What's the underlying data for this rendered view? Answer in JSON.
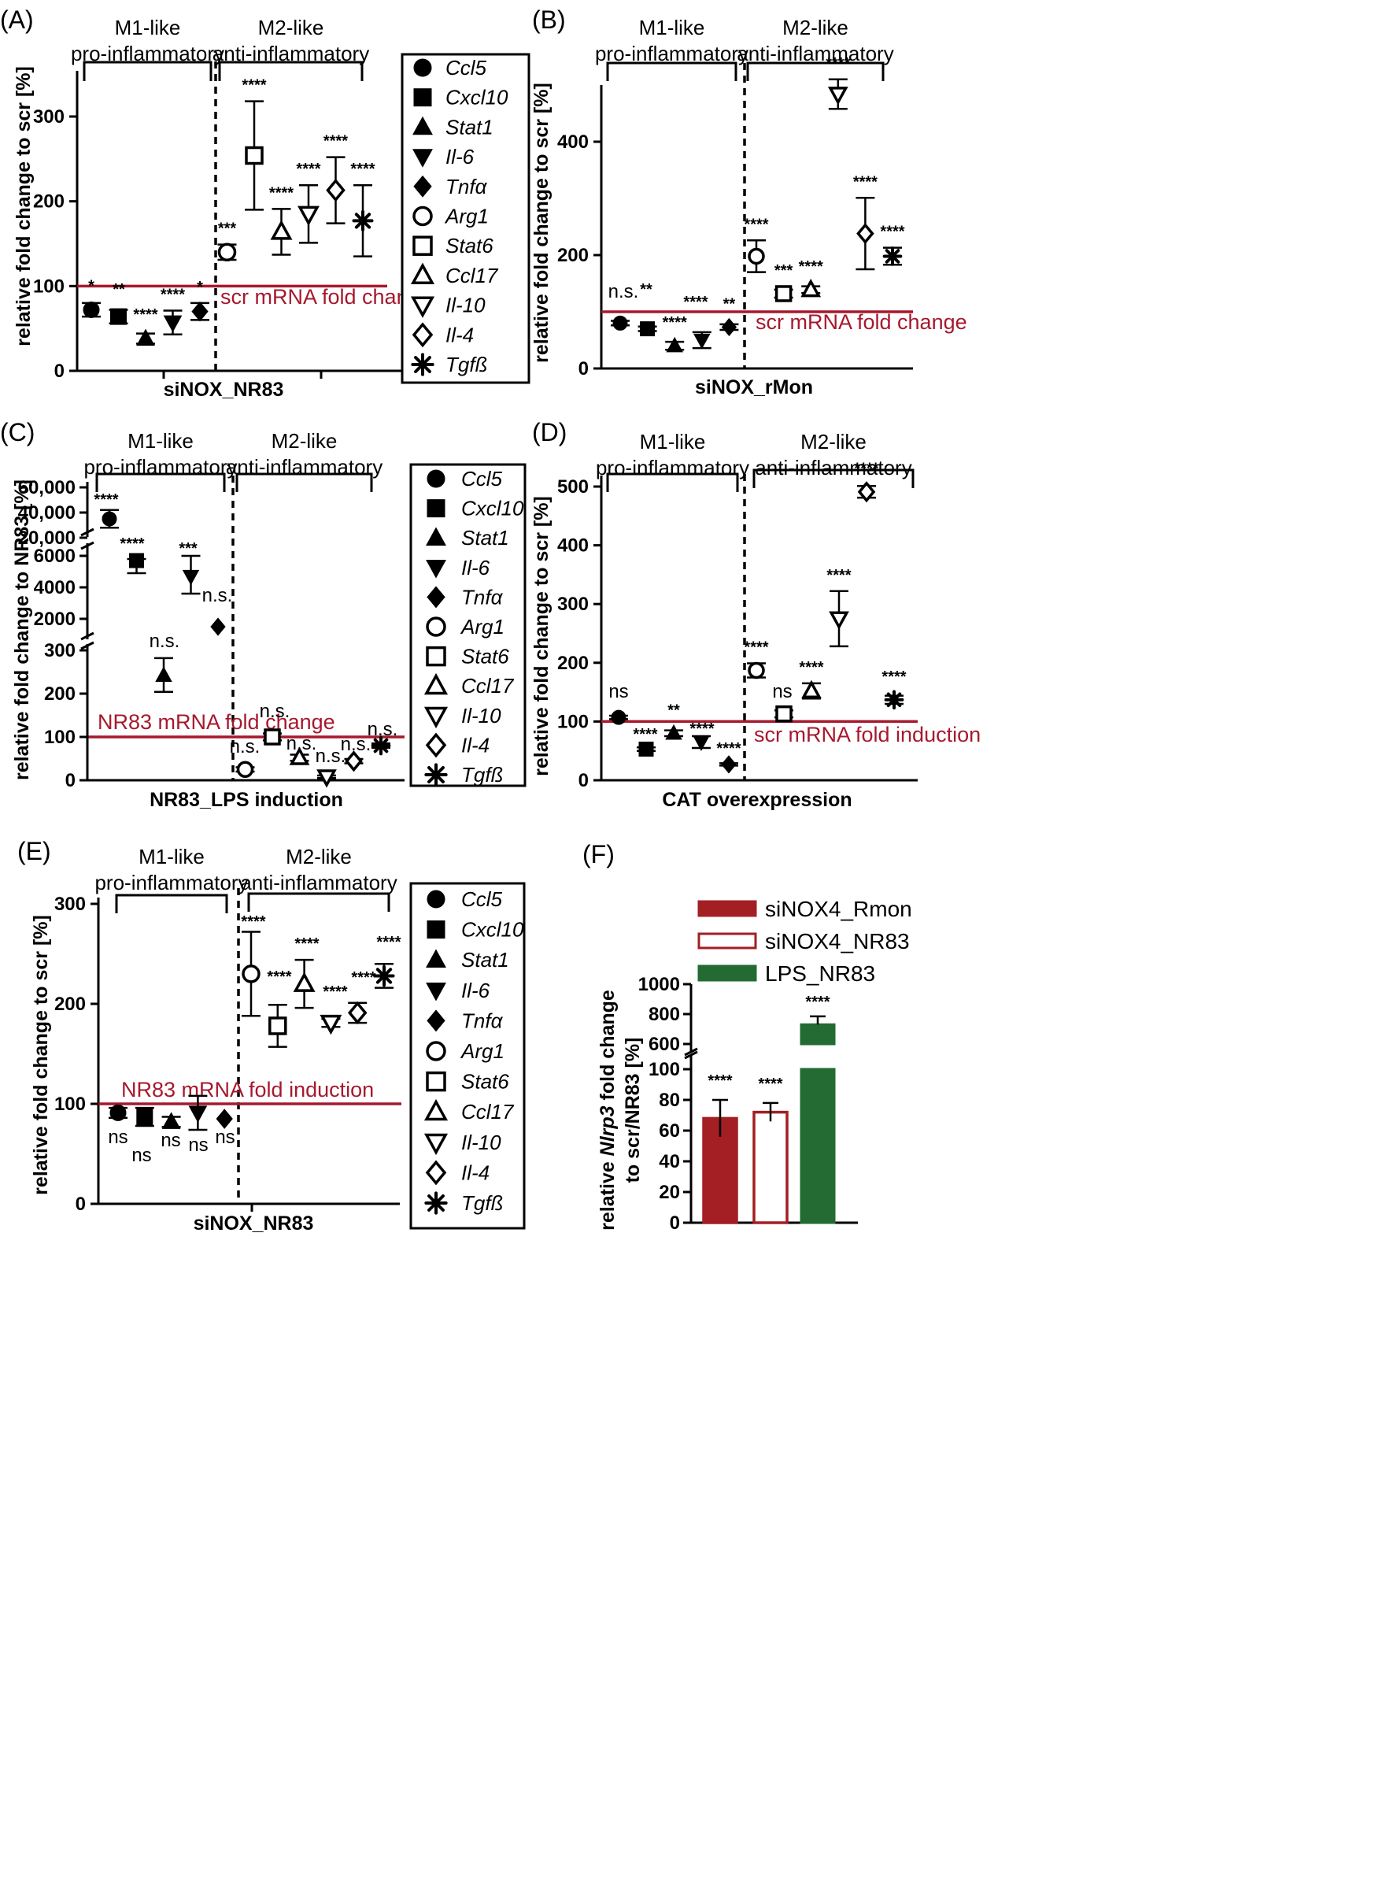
{
  "gene_order": [
    "Ccl5",
    "Cxcl10",
    "Stat1",
    "Il-6",
    "Tnfa",
    "Arg1",
    "Stat6",
    "Ccl17",
    "Il-10",
    "Il-4",
    "Tgfb"
  ],
  "marker_shapes": {
    "Ccl5": "filled-circle",
    "Cxcl10": "filled-square",
    "Stat1": "filled-triangle-up",
    "Il-6": "filled-triangle-down",
    "Tnfa": "filled-diamond",
    "Arg1": "open-circle",
    "Stat6": "open-square",
    "Ccl17": "open-triangle-up",
    "Il-10": "open-triangle-down",
    "Il-4": "open-diamond",
    "Tgfb": "asterisk"
  },
  "legend_labels": [
    "Ccl5",
    "Cxcl10",
    "Stat1",
    "Il-6",
    "Tnfα",
    "Arg1",
    "Stat6",
    "Ccl17",
    "Il-10",
    "Il-4",
    "Tgfß"
  ],
  "colors": {
    "reference_line": "#a6192e",
    "bar_red": "#a31f24",
    "bar_green": "#236b33",
    "ink": "#000000"
  },
  "chart_data": [
    {
      "panel": "(A)",
      "type": "scatter",
      "xlabel": "siNOX_NR83",
      "ylabel": "relative fold change to scr [%]",
      "groups": [
        {
          "label": [
            "M1-like",
            "pro-inflammatory"
          ]
        },
        {
          "label": [
            "M2-like",
            "anti-inflammatory"
          ]
        }
      ],
      "reference_line": {
        "value": 100,
        "label": "scr mRNA fold change"
      },
      "ylim": [
        0,
        350
      ],
      "yticks": [
        0,
        100,
        200,
        300
      ],
      "points": [
        {
          "gene": "Ccl5",
          "mean": 72,
          "err": [
            64,
            80
          ],
          "sig": "*"
        },
        {
          "gene": "Cxcl10",
          "mean": 64,
          "err": [
            56,
            72
          ],
          "sig": "**"
        },
        {
          "gene": "Stat1",
          "mean": 38,
          "err": [
            32,
            44
          ],
          "sig": "****"
        },
        {
          "gene": "Il-6",
          "mean": 57,
          "err": [
            43,
            71
          ],
          "sig": "****"
        },
        {
          "gene": "Tnfa",
          "mean": 70,
          "err": [
            60,
            80
          ],
          "sig": "*"
        },
        {
          "gene": "Arg1",
          "mean": 140,
          "err": [
            131,
            149
          ],
          "sig": "***"
        },
        {
          "gene": "Stat6",
          "mean": 254,
          "err": [
            190,
            318
          ],
          "sig": "****"
        },
        {
          "gene": "Ccl17",
          "mean": 164,
          "err": [
            137,
            191
          ],
          "sig": "****"
        },
        {
          "gene": "Il-10",
          "mean": 185,
          "err": [
            151,
            219
          ],
          "sig": "****"
        },
        {
          "gene": "Il-4",
          "mean": 213,
          "err": [
            174,
            252
          ],
          "sig": "****"
        },
        {
          "gene": "Tgfb",
          "mean": 177,
          "err": [
            135,
            219
          ],
          "sig": "****"
        }
      ]
    },
    {
      "panel": "(B)",
      "type": "scatter",
      "xlabel": "siNOX_rMon",
      "ylabel": "relative fold change to scr [%]",
      "groups": [
        {
          "label": [
            "M1-like",
            "pro-inflammatory"
          ]
        },
        {
          "label": [
            "M2-like",
            "anti-inflammatory"
          ]
        }
      ],
      "reference_line": {
        "value": 100,
        "label": "scr mRNA fold change"
      },
      "ylim": [
        0,
        500
      ],
      "yticks": [
        0,
        200,
        400
      ],
      "points": [
        {
          "gene": "Ccl5",
          "mean": 80,
          "err": [
            76,
            84
          ],
          "sig": "n.s."
        },
        {
          "gene": "Cxcl10",
          "mean": 70,
          "err": [
            66,
            74
          ],
          "sig": "**"
        },
        {
          "gene": "Stat1",
          "mean": 40,
          "err": [
            33,
            47
          ],
          "sig": "****"
        },
        {
          "gene": "Il-6",
          "mean": 50,
          "err": [
            36,
            64
          ],
          "sig": "****"
        },
        {
          "gene": "Tnfa",
          "mean": 73,
          "err": [
            68,
            78
          ],
          "sig": "**"
        },
        {
          "gene": "Arg1",
          "mean": 198,
          "err": [
            170,
            226
          ],
          "sig": "****"
        },
        {
          "gene": "Stat6",
          "mean": 132,
          "err": [
            125,
            139
          ],
          "sig": "***"
        },
        {
          "gene": "Ccl17",
          "mean": 139,
          "err": [
            133,
            145
          ],
          "sig": "****"
        },
        {
          "gene": "Il-10",
          "mean": 484,
          "err": [
            458,
            510
          ],
          "sig": "****"
        },
        {
          "gene": "Il-4",
          "mean": 238,
          "err": [
            175,
            301
          ],
          "sig": "****"
        },
        {
          "gene": "Tgfb",
          "mean": 198,
          "err": [
            183,
            213
          ],
          "sig": "****"
        }
      ]
    },
    {
      "panel": "(C)",
      "type": "scatter",
      "xlabel": "NR83_LPS induction",
      "ylabel": "relative fold change to NR83 [%]",
      "groups": [
        {
          "label": [
            "M1-like",
            "pro-inflammatory"
          ]
        },
        {
          "label": [
            "M2-like",
            "anti-inflammatory"
          ]
        }
      ],
      "reference_line": {
        "value": 100,
        "label": "NR83 mRNA fold change"
      },
      "axis_segments": [
        {
          "range": [
            0,
            320
          ],
          "ticks": [
            "0",
            "100",
            "200",
            "300"
          ]
        },
        {
          "range": [
            1000,
            6200
          ],
          "ticks": [
            "2000",
            "4000",
            "6000"
          ]
        },
        {
          "range": [
            18000,
            62000
          ],
          "ticks": [
            "20,000",
            "40,000",
            "60,000"
          ]
        }
      ],
      "points": [
        {
          "gene": "Ccl5",
          "mean": 35000,
          "err": [
            28000,
            42000
          ],
          "sig": "****"
        },
        {
          "gene": "Cxcl10",
          "mean": 5700,
          "err": [
            4900,
            5800
          ],
          "sig": "****"
        },
        {
          "gene": "Stat1",
          "mean": 242,
          "err": [
            204,
            282
          ],
          "sig": "n.s."
        },
        {
          "gene": "Il-6",
          "mean": 4700,
          "err": [
            3600,
            6000
          ],
          "sig": "***"
        },
        {
          "gene": "Tnfa",
          "mean": 1500,
          "err": [
            1500,
            1500
          ],
          "sig": "n.s."
        },
        {
          "gene": "Arg1",
          "mean": 25,
          "err": [
            20,
            30
          ],
          "sig": "n.s."
        },
        {
          "gene": "Stat6",
          "mean": 100,
          "err": [
            92,
            108
          ],
          "sig": "n.s."
        },
        {
          "gene": "Ccl17",
          "mean": 52,
          "err": [
            45,
            59
          ],
          "sig": "n.s."
        },
        {
          "gene": "Il-10",
          "mean": 8,
          "err": [
            5,
            11
          ],
          "sig": "n.s."
        },
        {
          "gene": "Il-4",
          "mean": 44,
          "err": [
            39,
            49
          ],
          "sig": "n.s."
        },
        {
          "gene": "Tgfb",
          "mean": 80,
          "err": [
            75,
            85
          ],
          "sig": "n.s."
        }
      ]
    },
    {
      "panel": "(D)",
      "type": "scatter",
      "xlabel": "CAT overexpression",
      "ylabel": "relative fold change to scr [%]",
      "groups": [
        {
          "label": [
            "M1-like",
            "pro-inflammatory"
          ]
        },
        {
          "label": [
            "M2-like",
            "anti-inflammatory"
          ]
        }
      ],
      "reference_line": {
        "value": 100,
        "label": "scr mRNA fold induction"
      },
      "ylim": [
        0,
        520
      ],
      "yticks": [
        0,
        100,
        200,
        300,
        400,
        500
      ],
      "points": [
        {
          "gene": "Ccl5",
          "mean": 107,
          "err": [
            104,
            110
          ],
          "sig": "ns"
        },
        {
          "gene": "Cxcl10",
          "mean": 53,
          "err": [
            50,
            56
          ],
          "sig": "****"
        },
        {
          "gene": "Stat1",
          "mean": 80,
          "err": [
            75,
            85
          ],
          "sig": "**"
        },
        {
          "gene": "Il-6",
          "mean": 65,
          "err": [
            55,
            75
          ],
          "sig": "****"
        },
        {
          "gene": "Tnfa",
          "mean": 27,
          "err": [
            25,
            29
          ],
          "sig": "****"
        },
        {
          "gene": "Arg1",
          "mean": 187,
          "err": [
            175,
            199
          ],
          "sig": "****"
        },
        {
          "gene": "Stat6",
          "mean": 113,
          "err": [
            107,
            119
          ],
          "sig": "ns"
        },
        {
          "gene": "Ccl17",
          "mean": 152,
          "err": [
            139,
            165
          ],
          "sig": "****"
        },
        {
          "gene": "Il-10",
          "mean": 275,
          "err": [
            228,
            322
          ],
          "sig": "****"
        },
        {
          "gene": "Il-4",
          "mean": 491,
          "err": [
            481,
            501
          ],
          "sig": "****"
        },
        {
          "gene": "Tgfb",
          "mean": 137,
          "err": [
            130,
            144
          ],
          "sig": "****"
        }
      ]
    },
    {
      "panel": "(E)",
      "type": "scatter",
      "xlabel": "siNOX_NR83",
      "ylabel": "relative fold change to scr [%]",
      "groups": [
        {
          "label": [
            "M1-like",
            "pro-inflammatory"
          ]
        },
        {
          "label": [
            "M2-like",
            "anti-inflammatory"
          ]
        }
      ],
      "reference_line": {
        "value": 100,
        "label": "NR83 mRNA fold induction"
      },
      "ylim": [
        0,
        300
      ],
      "yticks": [
        0,
        100,
        200,
        300
      ],
      "points": [
        {
          "gene": "Ccl5",
          "mean": 91,
          "err": [
            86,
            96
          ],
          "sig": "ns"
        },
        {
          "gene": "Cxcl10",
          "mean": 87,
          "err": [
            78,
            96
          ],
          "sig": "ns"
        },
        {
          "gene": "Stat1",
          "mean": 82,
          "err": [
            77,
            87
          ],
          "sig": "ns"
        },
        {
          "gene": "Il-6",
          "mean": 91,
          "err": [
            74,
            108
          ],
          "sig": "ns"
        },
        {
          "gene": "Tnfa",
          "mean": 85,
          "err": [
            85,
            85
          ],
          "sig": "ns"
        },
        {
          "gene": "Arg1",
          "mean": 230,
          "err": [
            188,
            272
          ],
          "sig": "****"
        },
        {
          "gene": "Stat6",
          "mean": 178,
          "err": [
            157,
            199
          ],
          "sig": "****"
        },
        {
          "gene": "Ccl17",
          "mean": 220,
          "err": [
            196,
            244
          ],
          "sig": "****"
        },
        {
          "gene": "Il-10",
          "mean": 181,
          "err": [
            177,
            185
          ],
          "sig": "****"
        },
        {
          "gene": "Il-4",
          "mean": 191,
          "err": [
            181,
            201
          ],
          "sig": "****"
        },
        {
          "gene": "Tgfb",
          "mean": 228,
          "err": [
            216,
            240
          ],
          "sig": "****"
        }
      ]
    },
    {
      "panel": "(F)",
      "type": "bar",
      "ylabel_parts": [
        "relative ",
        "Nlrp3",
        " fold change"
      ],
      "ylabel_line2": "to scr/NR83 [%]",
      "axis_segments": [
        {
          "range": [
            0,
            100
          ],
          "ticks": [
            "0",
            "20",
            "40",
            "60",
            "80",
            "100"
          ]
        },
        {
          "range": [
            500,
            1000
          ],
          "ticks": [
            "600",
            "800",
            "1000"
          ]
        }
      ],
      "series": [
        {
          "name": "siNOX4_Rmon",
          "value": 68,
          "err": 12,
          "sig": "****",
          "style": "filled-red"
        },
        {
          "name": "siNOX4_NR83",
          "value": 72,
          "err": 6,
          "sig": "****",
          "style": "open-red"
        },
        {
          "name": "LPS_NR83",
          "value": 730,
          "err": 55,
          "sig": "****",
          "style": "filled-green"
        }
      ]
    }
  ]
}
